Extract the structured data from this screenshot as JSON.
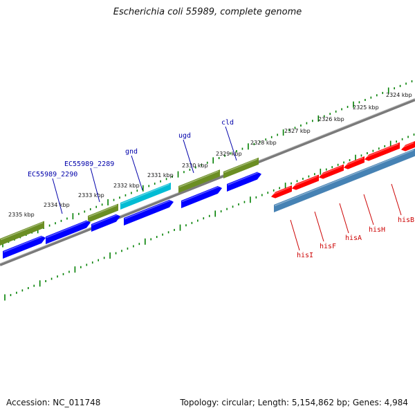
{
  "title": "Escherichia coli 55989, complete genome",
  "footer": {
    "accession": "Accession: NC_011748",
    "summary": "Topology: circular; Length: 5,154,862 bp; Genes: 4,984"
  },
  "colors": {
    "forward_track": "#6b8e23",
    "reverse_track": "#0000ff",
    "highlight": "#00bcd4",
    "his_operon": "#ff0000",
    "his_operon_label": "#cc0000",
    "his_underline": "#4682b4",
    "tick": "#008000",
    "backbone": "#7a7a7a",
    "gene_label": "#0000aa"
  },
  "scale": {
    "labels": [
      "2324 kbp",
      "2325 kbp",
      "2326 kbp",
      "2327 kbp",
      "2328 kbp",
      "2329 kbp",
      "2330 kbp",
      "2331 kbp",
      "2332 kbp",
      "2333 kbp",
      "2334 kbp",
      "2335 kbp"
    ]
  },
  "gene_labels": {
    "top": [
      "cld",
      "ugd",
      "gnd",
      "EC55989_2289",
      "EC55989_2290"
    ],
    "bottom": [
      "hisI",
      "hisF",
      "hisA",
      "hisH",
      "hisB"
    ]
  }
}
